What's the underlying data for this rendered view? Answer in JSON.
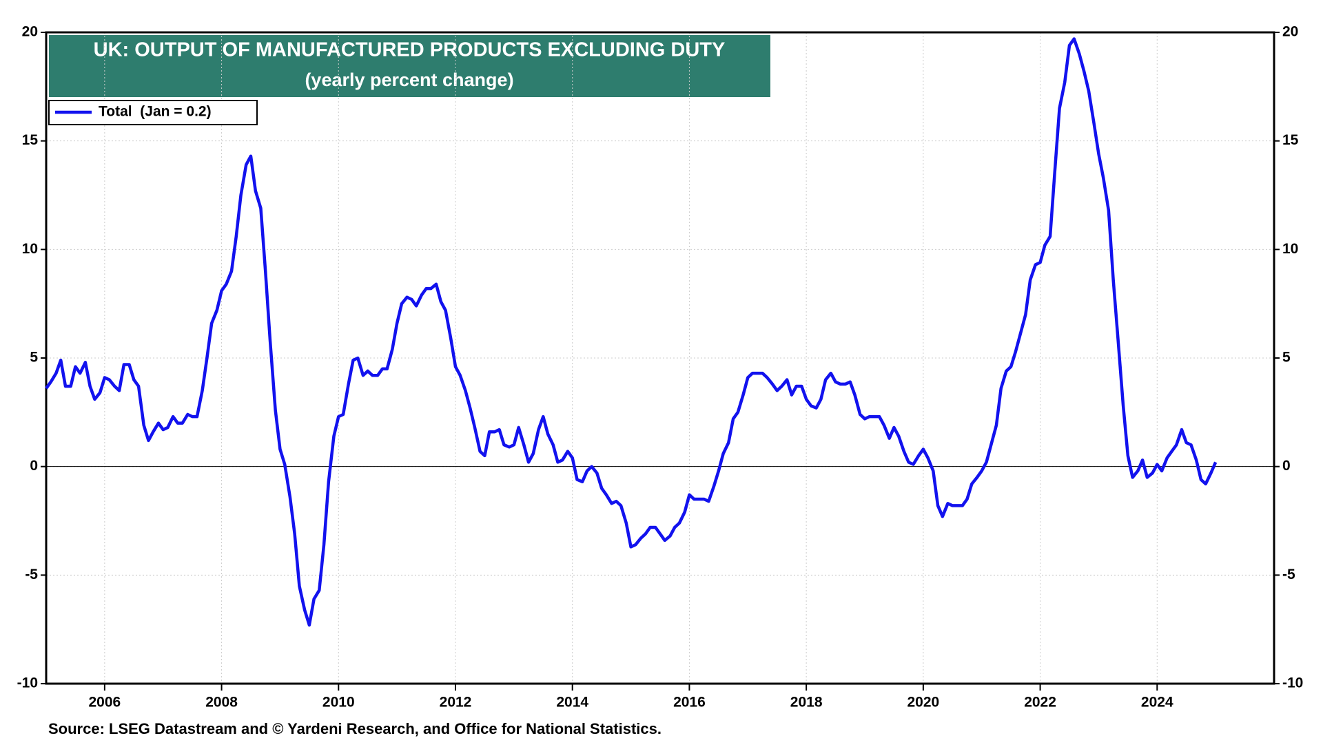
{
  "chart_data": {
    "type": "line",
    "title": "UK: OUTPUT OF MANUFACTURED PRODUCTS EXCLUDING DUTY",
    "subtitle": "(yearly percent change)",
    "source": "Source: LSEG Datastream and © Yardeni Research, and Office for National Statistics.",
    "xlim": [
      2005,
      2026
    ],
    "xticks": [
      2006,
      2008,
      2010,
      2012,
      2014,
      2016,
      2018,
      2020,
      2022,
      2024
    ],
    "ylim": [
      -10,
      20
    ],
    "yticks": [
      -10,
      -5,
      0,
      5,
      10,
      15,
      20
    ],
    "y2lim": [
      -10,
      20
    ],
    "y2ticks": [
      -10,
      -5,
      0,
      5,
      10,
      15,
      20
    ],
    "grid": true,
    "legend": "upper left",
    "x": [
      2005.0,
      2005.08,
      2005.17,
      2005.25,
      2005.33,
      2005.42,
      2005.5,
      2005.58,
      2005.67,
      2005.75,
      2005.83,
      2005.92,
      2006.0,
      2006.08,
      2006.17,
      2006.25,
      2006.33,
      2006.42,
      2006.5,
      2006.58,
      2006.67,
      2006.75,
      2006.83,
      2006.92,
      2007.0,
      2007.08,
      2007.17,
      2007.25,
      2007.33,
      2007.42,
      2007.5,
      2007.58,
      2007.67,
      2007.75,
      2007.83,
      2007.92,
      2008.0,
      2008.08,
      2008.17,
      2008.25,
      2008.33,
      2008.42,
      2008.5,
      2008.58,
      2008.67,
      2008.75,
      2008.83,
      2008.92,
      2009.0,
      2009.08,
      2009.17,
      2009.25,
      2009.33,
      2009.42,
      2009.5,
      2009.58,
      2009.67,
      2009.75,
      2009.83,
      2009.92,
      2010.0,
      2010.08,
      2010.17,
      2010.25,
      2010.33,
      2010.42,
      2010.5,
      2010.58,
      2010.67,
      2010.75,
      2010.83,
      2010.92,
      2011.0,
      2011.08,
      2011.17,
      2011.25,
      2011.33,
      2011.42,
      2011.5,
      2011.58,
      2011.67,
      2011.75,
      2011.83,
      2011.92,
      2012.0,
      2012.08,
      2012.17,
      2012.25,
      2012.33,
      2012.42,
      2012.5,
      2012.58,
      2012.67,
      2012.75,
      2012.83,
      2012.92,
      2013.0,
      2013.08,
      2013.17,
      2013.25,
      2013.33,
      2013.42,
      2013.5,
      2013.58,
      2013.67,
      2013.75,
      2013.83,
      2013.92,
      2014.0,
      2014.08,
      2014.17,
      2014.25,
      2014.33,
      2014.42,
      2014.5,
      2014.58,
      2014.67,
      2014.75,
      2014.83,
      2014.92,
      2015.0,
      2015.08,
      2015.17,
      2015.25,
      2015.33,
      2015.42,
      2015.5,
      2015.58,
      2015.67,
      2015.75,
      2015.83,
      2015.92,
      2016.0,
      2016.08,
      2016.17,
      2016.25,
      2016.33,
      2016.42,
      2016.5,
      2016.58,
      2016.67,
      2016.75,
      2016.83,
      2016.92,
      2017.0,
      2017.08,
      2017.17,
      2017.25,
      2017.33,
      2017.42,
      2017.5,
      2017.58,
      2017.67,
      2017.75,
      2017.83,
      2017.92,
      2018.0,
      2018.08,
      2018.17,
      2018.25,
      2018.33,
      2018.42,
      2018.5,
      2018.58,
      2018.67,
      2018.75,
      2018.83,
      2018.92,
      2019.0,
      2019.08,
      2019.17,
      2019.25,
      2019.33,
      2019.42,
      2019.5,
      2019.58,
      2019.67,
      2019.75,
      2019.83,
      2019.92,
      2020.0,
      2020.08,
      2020.17,
      2020.25,
      2020.33,
      2020.42,
      2020.5,
      2020.58,
      2020.67,
      2020.75,
      2020.83,
      2020.92,
      2021.0,
      2021.08,
      2021.17,
      2021.25,
      2021.33,
      2021.42,
      2021.5,
      2021.58,
      2021.67,
      2021.75,
      2021.83,
      2021.92,
      2022.0,
      2022.08,
      2022.17,
      2022.25,
      2022.33,
      2022.42,
      2022.5,
      2022.58,
      2022.67,
      2022.75,
      2022.83,
      2022.92,
      2023.0,
      2023.08,
      2023.17,
      2023.25,
      2023.33,
      2023.42,
      2023.5,
      2023.58,
      2023.67,
      2023.75,
      2023.83,
      2023.92,
      2024.0,
      2024.08,
      2024.17,
      2024.25,
      2024.33,
      2024.42,
      2024.5,
      2024.58,
      2024.67,
      2024.75,
      2024.83,
      2024.92,
      2025.0
    ],
    "series": [
      {
        "name": "Total  (Jan = 0.2)",
        "color": "#1212ee",
        "values": [
          3.6,
          3.9,
          4.3,
          4.9,
          3.7,
          3.7,
          4.6,
          4.3,
          4.8,
          3.7,
          3.1,
          3.4,
          4.1,
          4.0,
          3.7,
          3.5,
          4.7,
          4.7,
          4.0,
          3.7,
          1.9,
          1.2,
          1.6,
          2.0,
          1.7,
          1.8,
          2.3,
          2.0,
          2.0,
          2.4,
          2.3,
          2.3,
          3.5,
          5.0,
          6.6,
          7.2,
          8.1,
          8.4,
          9.0,
          10.6,
          12.5,
          13.9,
          14.3,
          12.7,
          11.9,
          9.0,
          5.8,
          2.6,
          0.8,
          0.1,
          -1.4,
          -3.1,
          -5.5,
          -6.6,
          -7.3,
          -6.1,
          -5.7,
          -3.6,
          -0.7,
          1.4,
          2.3,
          2.4,
          3.8,
          4.9,
          5.0,
          4.2,
          4.4,
          4.2,
          4.2,
          4.5,
          4.5,
          5.4,
          6.6,
          7.5,
          7.8,
          7.7,
          7.4,
          7.9,
          8.2,
          8.2,
          8.4,
          7.6,
          7.2,
          5.9,
          4.6,
          4.2,
          3.5,
          2.7,
          1.8,
          0.7,
          0.5,
          1.6,
          1.6,
          1.7,
          1.0,
          0.9,
          1.0,
          1.8,
          1.0,
          0.2,
          0.6,
          1.7,
          2.3,
          1.5,
          1.0,
          0.2,
          0.3,
          0.7,
          0.4,
          -0.6,
          -0.7,
          -0.2,
          0.0,
          -0.3,
          -1.0,
          -1.3,
          -1.7,
          -1.6,
          -1.8,
          -2.6,
          -3.7,
          -3.6,
          -3.3,
          -3.1,
          -2.8,
          -2.8,
          -3.1,
          -3.4,
          -3.2,
          -2.8,
          -2.6,
          -2.1,
          -1.3,
          -1.5,
          -1.5,
          -1.5,
          -1.6,
          -0.9,
          -0.2,
          0.6,
          1.1,
          2.2,
          2.5,
          3.3,
          4.1,
          4.3,
          4.3,
          4.3,
          4.1,
          3.8,
          3.5,
          3.7,
          4.0,
          3.3,
          3.7,
          3.7,
          3.1,
          2.8,
          2.7,
          3.1,
          4.0,
          4.3,
          3.9,
          3.8,
          3.8,
          3.9,
          3.3,
          2.4,
          2.2,
          2.3,
          2.3,
          2.3,
          1.9,
          1.3,
          1.8,
          1.4,
          0.7,
          0.2,
          0.1,
          0.5,
          0.8,
          0.4,
          -0.2,
          -1.8,
          -2.3,
          -1.7,
          -1.8,
          -1.8,
          -1.8,
          -1.5,
          -0.8,
          -0.5,
          -0.2,
          0.2,
          1.1,
          1.9,
          3.6,
          4.4,
          4.6,
          5.3,
          6.2,
          7.0,
          8.6,
          9.3,
          9.4,
          10.2,
          10.6,
          13.6,
          16.5,
          17.7,
          19.4,
          19.7,
          19.0,
          18.2,
          17.3,
          15.8,
          14.4,
          13.3,
          11.8,
          8.6,
          5.9,
          2.8,
          0.5,
          -0.5,
          -0.2,
          0.3,
          -0.5,
          -0.3,
          0.1,
          -0.2,
          0.4,
          0.7,
          1.0,
          1.7,
          1.1,
          1.0,
          0.3,
          -0.6,
          -0.8,
          -0.3,
          0.2
        ]
      }
    ]
  }
}
